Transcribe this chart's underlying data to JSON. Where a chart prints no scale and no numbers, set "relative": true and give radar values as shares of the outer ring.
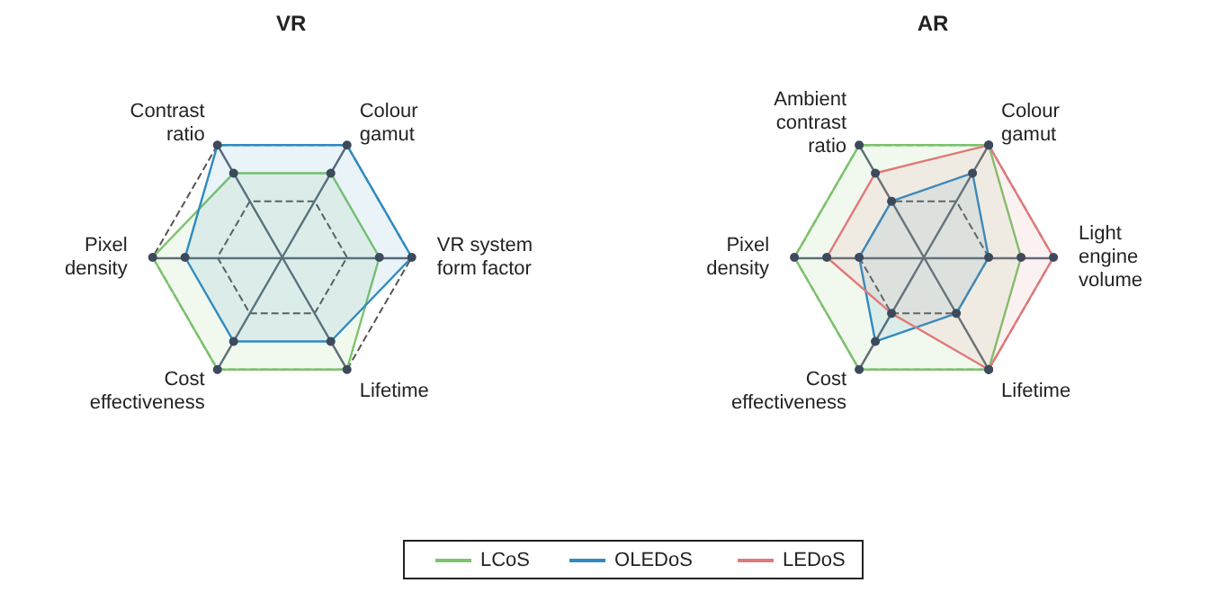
{
  "chart_data": [
    {
      "type": "radar",
      "title": "VR",
      "relative": true,
      "grid": true,
      "marker": "circle",
      "legend": "bottom",
      "categories": [
        "Colour gamut",
        "VR system form factor",
        "Lifetime",
        "Cost effectiveness",
        "Pixel density",
        "Contrast ratio"
      ],
      "series": [
        {
          "name": "LCoS",
          "color": "#7cc46c",
          "values": [
            0.75,
            0.75,
            1,
            1,
            1,
            0.75
          ]
        },
        {
          "name": "OLEDoS",
          "color": "#2e8bc0",
          "values": [
            1,
            1,
            0.75,
            0.75,
            0.75,
            1
          ]
        }
      ]
    },
    {
      "type": "radar",
      "title": "AR",
      "relative": true,
      "grid": true,
      "marker": "circle",
      "legend": "bottom",
      "categories": [
        "Colour gamut",
        "Light engine volume",
        "Lifetime",
        "Cost effectiveness",
        "Pixel density",
        "Ambient contrast ratio"
      ],
      "series": [
        {
          "name": "LCoS",
          "color": "#7cc46c",
          "values": [
            1,
            0.75,
            1,
            1,
            1,
            1
          ]
        },
        {
          "name": "OLEDoS",
          "color": "#2e8bc0",
          "values": [
            0.75,
            0.5,
            0.5,
            0.75,
            0.5,
            0.5
          ]
        },
        {
          "name": "LEDoS",
          "color": "#e07a7a",
          "values": [
            1,
            1,
            1,
            0.5,
            0.75,
            0.75
          ]
        }
      ]
    }
  ]
}
